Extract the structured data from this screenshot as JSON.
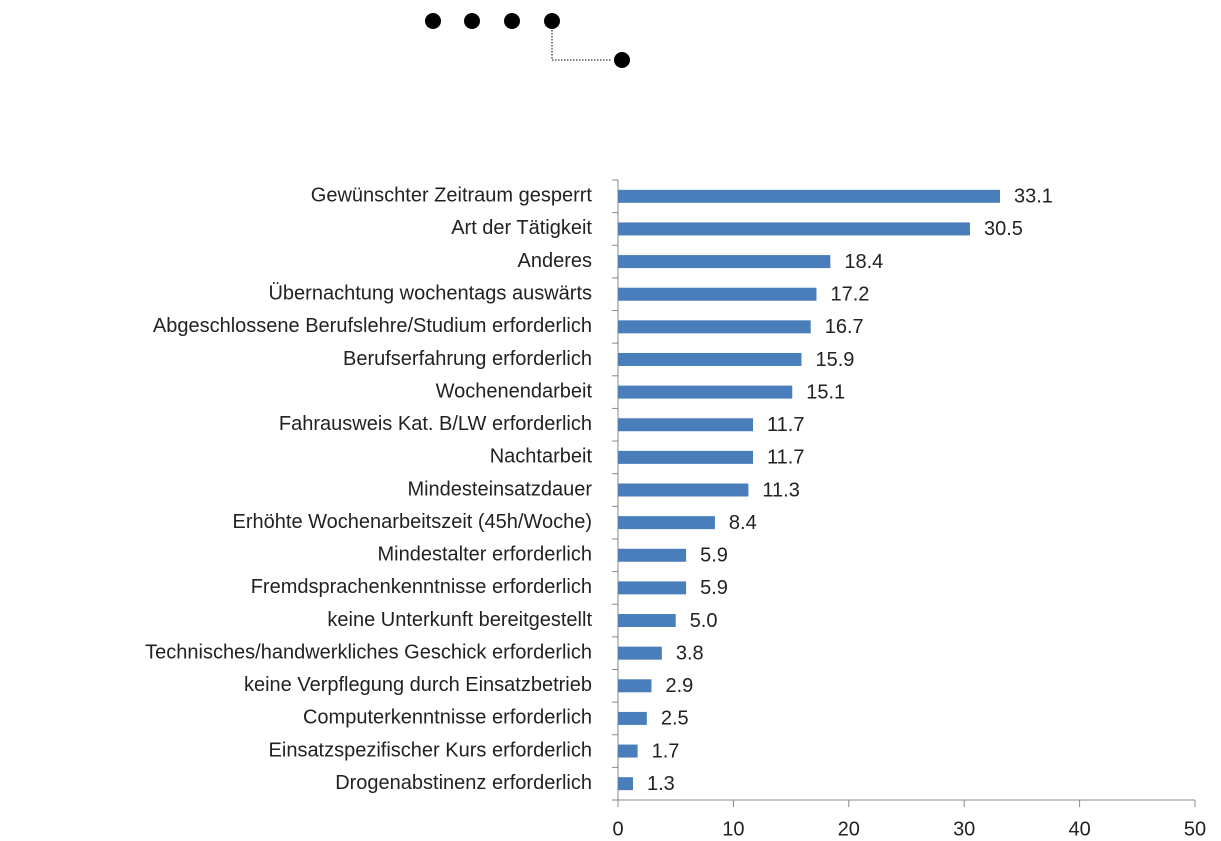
{
  "chart_data": {
    "type": "bar",
    "orientation": "horizontal",
    "categories": [
      "Gewünschter Zeitraum gesperrt",
      "Art der Tätigkeit",
      "Anderes",
      "Übernachtung wochentags auswärts",
      "Abgeschlossene Berufslehre/Studium erforderlich",
      "Berufserfahrung erforderlich",
      "Wochenendarbeit",
      "Fahrausweis Kat. B/LW erforderlich",
      "Nachtarbeit",
      "Mindesteinsatzdauer",
      "Erhöhte Wochenarbeitszeit (45h/Woche)",
      "Mindestalter erforderlich",
      "Fremdsprachenkenntnisse erforderlich",
      "keine Unterkunft bereitgestellt",
      "Technisches/handwerkliches Geschick erforderlich",
      "keine Verpflegung durch Einsatzbetrieb",
      "Computerkenntnisse erforderlich",
      "Einsatzspezifischer Kurs erforderlich",
      "Drogenabstinenz erforderlich"
    ],
    "values": [
      33.1,
      30.5,
      18.4,
      17.2,
      16.7,
      15.9,
      15.1,
      11.7,
      11.7,
      11.3,
      8.4,
      5.9,
      5.9,
      5.0,
      3.8,
      2.9,
      2.5,
      1.7,
      1.3
    ],
    "value_labels": [
      "33.1",
      "30.5",
      "18.4",
      "17.2",
      "16.7",
      "15.9",
      "15.1",
      "11.7",
      "11.7",
      "11.3",
      "8.4",
      "5.9",
      "5.9",
      "5.0",
      "3.8",
      "2.9",
      "2.5",
      "1.7",
      "1.3"
    ],
    "color": "#4a7ebb",
    "xlim": [
      0,
      50
    ],
    "xticks": [
      0,
      10,
      20,
      30,
      40,
      50
    ]
  }
}
